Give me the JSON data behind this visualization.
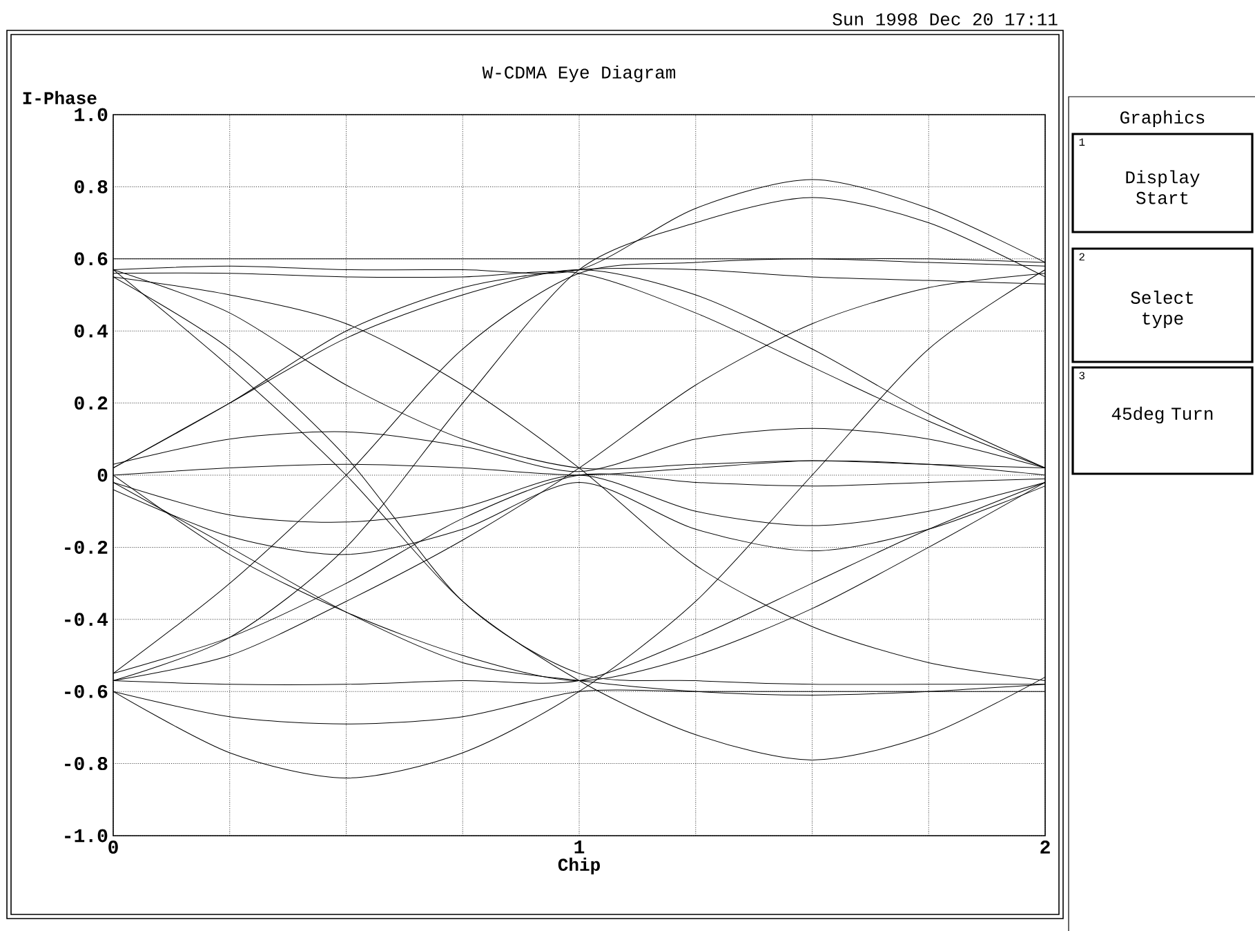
{
  "chart_data": {
    "type": "line",
    "title": "W-CDMA Eye Diagram",
    "xlabel": "Chip",
    "ylabel": "I-Phase",
    "x": [
      0,
      0.25,
      0.5,
      0.75,
      1,
      1.25,
      1.5,
      1.75,
      2
    ],
    "xlim": [
      0,
      2
    ],
    "ylim": [
      -1.0,
      1.0
    ],
    "xticks": [
      0,
      {
        "value": 0.25,
        "label": null
      },
      {
        "value": 0.5,
        "label": null
      },
      {
        "value": 0.75,
        "label": null
      },
      1,
      {
        "value": 1.25,
        "label": null
      },
      {
        "value": 1.5,
        "label": null
      },
      {
        "value": 1.75,
        "label": null
      },
      2
    ],
    "yticks": [
      {
        "value": -1.0,
        "label": "-1.0"
      },
      -0.8,
      -0.6,
      -0.4,
      -0.2,
      0,
      0.2,
      0.4,
      0.6,
      0.8,
      {
        "value": 1.0,
        "label": "1.0"
      }
    ],
    "grid": true,
    "marker": "none",
    "line_style": "solid",
    "annotations": [
      "Sun 1998 Dec 20 17:11",
      "Graphics",
      "1",
      "Display Start",
      "2",
      "Select type",
      "3",
      "45deg Turn"
    ],
    "series": [
      {
        "color": "#000000",
        "values": [
          0.6,
          0.6,
          0.6,
          0.6,
          0.6,
          0.6,
          0.6,
          0.6,
          0.59
        ]
      },
      {
        "color": "#000000",
        "values": [
          0.57,
          0.58,
          0.57,
          0.57,
          0.57,
          0.74,
          0.82,
          0.74,
          0.59
        ]
      },
      {
        "color": "#000000",
        "values": [
          -0.57,
          -0.45,
          -0.2,
          0.2,
          0.57,
          0.7,
          0.77,
          0.7,
          0.55
        ]
      },
      {
        "color": "#000000",
        "values": [
          0.55,
          0.5,
          0.42,
          0.25,
          0.02,
          -0.25,
          -0.42,
          -0.52,
          -0.57
        ]
      },
      {
        "color": "#000000",
        "values": [
          0.57,
          0.3,
          0,
          -0.35,
          -0.57,
          -0.72,
          -0.79,
          -0.72,
          -0.56
        ]
      },
      {
        "color": "#000000",
        "values": [
          -0.6,
          -0.77,
          -0.84,
          -0.77,
          -0.6,
          -0.35,
          0,
          0.35,
          0.57
        ]
      },
      {
        "color": "#000000",
        "values": [
          -0.6,
          -0.67,
          -0.69,
          -0.67,
          -0.6,
          -0.6,
          -0.6,
          -0.6,
          -0.6
        ]
      },
      {
        "color": "#000000",
        "values": [
          -0.57,
          -0.5,
          -0.35,
          -0.18,
          0.02,
          0.25,
          0.42,
          0.52,
          0.56
        ]
      },
      {
        "color": "#000000",
        "values": [
          0.02,
          0.2,
          0.38,
          0.5,
          0.57,
          0.5,
          0.35,
          0.17,
          0.02
        ]
      },
      {
        "color": "#000000",
        "values": [
          0,
          -0.22,
          -0.38,
          -0.5,
          -0.57,
          -0.5,
          -0.37,
          -0.2,
          -0.02
        ]
      },
      {
        "color": "#000000",
        "values": [
          0.03,
          0.1,
          0.12,
          0.08,
          0.01,
          0.1,
          0.13,
          0.1,
          0.02
        ]
      },
      {
        "color": "#000000",
        "values": [
          -0.02,
          -0.11,
          -0.13,
          -0.09,
          0,
          -0.1,
          -0.14,
          -0.1,
          -0.02
        ]
      },
      {
        "color": "#000000",
        "values": [
          0,
          0.02,
          0.03,
          0.02,
          0,
          0.02,
          0.04,
          0.03,
          0
        ]
      },
      {
        "color": "#000000",
        "values": [
          -0.04,
          -0.17,
          -0.22,
          -0.15,
          -0.02,
          -0.15,
          -0.21,
          -0.15,
          -0.03
        ]
      },
      {
        "color": "#000000",
        "values": [
          0.55,
          0.35,
          0.05,
          -0.35,
          -0.55,
          -0.57,
          -0.58,
          -0.58,
          -0.58
        ]
      },
      {
        "color": "#000000",
        "values": [
          -0.55,
          -0.3,
          0,
          0.35,
          0.56,
          0.59,
          0.6,
          0.59,
          0.58
        ]
      },
      {
        "color": "#000000",
        "values": [
          0.02,
          0.2,
          0.4,
          0.52,
          0.57,
          0.57,
          0.55,
          0.54,
          0.53
        ]
      },
      {
        "color": "#000000",
        "values": [
          0.56,
          0.56,
          0.55,
          0.55,
          0.56,
          0.45,
          0.3,
          0.15,
          0.02
        ]
      },
      {
        "color": "#000000",
        "values": [
          -0.57,
          -0.58,
          -0.58,
          -0.57,
          -0.57,
          -0.45,
          -0.3,
          -0.15,
          -0.02
        ]
      },
      {
        "color": "#000000",
        "values": [
          -0.02,
          -0.2,
          -0.38,
          -0.52,
          -0.57,
          -0.6,
          -0.61,
          -0.6,
          -0.58
        ]
      },
      {
        "color": "#000000",
        "values": [
          0.57,
          0.45,
          0.25,
          0.1,
          0.02,
          0.03,
          0.04,
          0.03,
          0.02
        ]
      },
      {
        "color": "#000000",
        "values": [
          -0.55,
          -0.45,
          -0.3,
          -0.12,
          0,
          -0.02,
          -0.03,
          -0.02,
          -0.01
        ]
      }
    ]
  }
}
